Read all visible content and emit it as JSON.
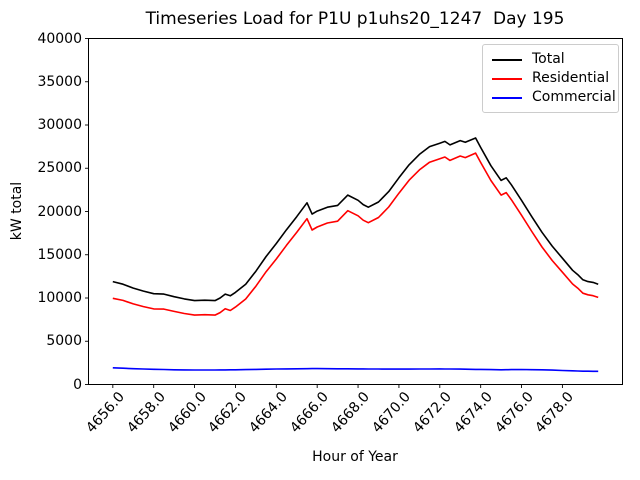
{
  "chart_data": {
    "type": "line",
    "title": "Timeseries Load for P1U p1uhs20_1247  Day 195",
    "xlabel": "Hour of Year",
    "ylabel": "kW total",
    "xlim": [
      4654.81,
      4680.94
    ],
    "ylim": [
      0,
      40000
    ],
    "grid": false,
    "legend_position": "upper right",
    "yticks": [
      0,
      5000,
      10000,
      15000,
      20000,
      25000,
      30000,
      35000,
      40000
    ],
    "ytick_labels": [
      "0",
      "5000",
      "10000",
      "15000",
      "20000",
      "25000",
      "30000",
      "35000",
      "40000"
    ],
    "xticks": [
      4656,
      4658,
      4660,
      4662,
      4664,
      4666,
      4668,
      4670,
      4672,
      4674,
      4676,
      4678
    ],
    "xtick_labels": [
      "4656.0",
      "4658.0",
      "4660.0",
      "4662.0",
      "4664.0",
      "4666.0",
      "4668.0",
      "4670.0",
      "4672.0",
      "4674.0",
      "4676.0",
      "4678.0"
    ],
    "x": [
      4656,
      4656.5,
      4657,
      4657.5,
      4658,
      4658.5,
      4659,
      4659.5,
      4660,
      4660.5,
      4661,
      4661.25,
      4661.5,
      4661.75,
      4662,
      4662.5,
      4663,
      4663.5,
      4664,
      4664.5,
      4665,
      4665.5,
      4665.75,
      4666,
      4666.5,
      4667,
      4667.5,
      4668,
      4668.25,
      4668.5,
      4669,
      4669.5,
      4670,
      4670.5,
      4671,
      4671.5,
      4672,
      4672.25,
      4672.5,
      4673,
      4673.25,
      4673.75,
      4674,
      4674.5,
      4675,
      4675.25,
      4675.5,
      4676,
      4676.5,
      4677,
      4677.5,
      4678,
      4678.5,
      4678.75,
      4679,
      4679.25,
      4679.5,
      4679.75
    ],
    "series": [
      {
        "name": "Total",
        "color": "#000000",
        "values": [
          11900,
          11600,
          11150,
          10800,
          10500,
          10450,
          10150,
          9900,
          9700,
          9750,
          9700,
          10000,
          10450,
          10250,
          10650,
          11600,
          13100,
          14800,
          16300,
          17900,
          19400,
          21000,
          19700,
          20050,
          20500,
          20700,
          21900,
          21300,
          20800,
          20500,
          21100,
          22300,
          23900,
          25400,
          26600,
          27500,
          27900,
          28100,
          27700,
          28200,
          28000,
          28500,
          27400,
          25300,
          23600,
          23900,
          23100,
          21300,
          19400,
          17600,
          16000,
          14600,
          13200,
          12700,
          12100,
          11900,
          11800,
          11600
        ]
      },
      {
        "name": "Residential",
        "color": "#ff0000",
        "values": [
          9970,
          9720,
          9320,
          9010,
          8740,
          8720,
          8450,
          8210,
          8020,
          8070,
          8020,
          8315,
          8760,
          8555,
          8950,
          9880,
          11360,
          13035,
          14510,
          16095,
          17580,
          19170,
          17865,
          18210,
          18670,
          18880,
          20090,
          19500,
          19000,
          18705,
          19310,
          20515,
          22120,
          23615,
          24810,
          25705,
          26100,
          26305,
          25910,
          26420,
          26230,
          26750,
          25660,
          23580,
          21900,
          22190,
          21380,
          19570,
          17685,
          15900,
          14340,
          12980,
          11620,
          11140,
          10560,
          10365,
          10270,
          10075
        ]
      },
      {
        "name": "Commercial",
        "color": "#0000ff",
        "values": [
          1930,
          1880,
          1830,
          1790,
          1760,
          1730,
          1700,
          1690,
          1680,
          1680,
          1680,
          1685,
          1690,
          1695,
          1700,
          1720,
          1740,
          1765,
          1790,
          1805,
          1820,
          1830,
          1835,
          1840,
          1830,
          1820,
          1810,
          1800,
          1800,
          1795,
          1790,
          1785,
          1780,
          1785,
          1790,
          1795,
          1800,
          1795,
          1790,
          1780,
          1770,
          1750,
          1740,
          1720,
          1700,
          1710,
          1720,
          1730,
          1715,
          1700,
          1660,
          1620,
          1580,
          1560,
          1540,
          1535,
          1530,
          1525
        ]
      }
    ]
  }
}
